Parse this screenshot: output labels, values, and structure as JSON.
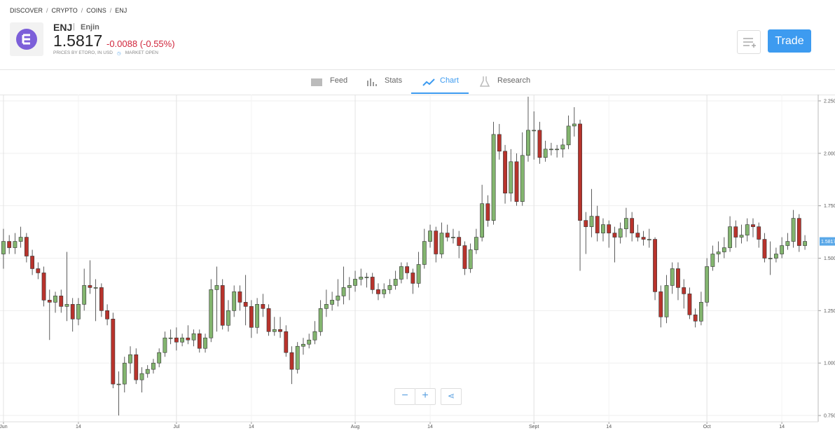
{
  "breadcrumb": [
    "DISCOVER",
    "CRYPTO",
    "COINS",
    "ENJ"
  ],
  "header": {
    "ticker": "ENJ",
    "name": "Enjin",
    "price": "1.5817",
    "change": "-0.0088 (-0.55%)",
    "source": "PRICES BY ETORO, IN USD",
    "status": "MARKET OPEN",
    "trade": "Trade"
  },
  "tabs": [
    "Feed",
    "Stats",
    "Chart",
    "Research"
  ],
  "chart_data": {
    "type": "candlestick",
    "up_color": "#83b56f",
    "down_color": "#b8332c",
    "grid": true,
    "ylim": [
      0.72,
      2.28
    ],
    "yticks": [
      {
        "value": 0.75,
        "label": "0.750"
      },
      {
        "value": 1.0,
        "label": "1.000"
      },
      {
        "value": 1.25,
        "label": "1.250"
      },
      {
        "value": 1.5,
        "label": "1.500"
      },
      {
        "value": 1.75,
        "label": "1.750"
      },
      {
        "value": 2.0,
        "label": "2.000"
      },
      {
        "value": 2.25,
        "label": "2.250"
      }
    ],
    "xlim": [
      -0.6,
      141.3
    ],
    "xticks": [
      {
        "value": 0,
        "label": "Jun"
      },
      {
        "value": 13,
        "label": "14"
      },
      {
        "value": 30,
        "label": "Jul"
      },
      {
        "value": 43,
        "label": "14"
      },
      {
        "value": 61,
        "label": "Aug"
      },
      {
        "value": 74,
        "label": "14"
      },
      {
        "value": 92,
        "label": "Sept"
      },
      {
        "value": 105,
        "label": "14"
      },
      {
        "value": 122,
        "label": "Oct"
      },
      {
        "value": 135,
        "label": "14"
      }
    ],
    "ohlc": [
      [
        1.52,
        1.64,
        1.45,
        1.58
      ],
      [
        1.58,
        1.61,
        1.52,
        1.55
      ],
      [
        1.55,
        1.62,
        1.52,
        1.58
      ],
      [
        1.58,
        1.65,
        1.55,
        1.6
      ],
      [
        1.6,
        1.62,
        1.48,
        1.51
      ],
      [
        1.51,
        1.54,
        1.42,
        1.45
      ],
      [
        1.45,
        1.48,
        1.4,
        1.43
      ],
      [
        1.43,
        1.46,
        1.27,
        1.3
      ],
      [
        1.3,
        1.35,
        1.11,
        1.29
      ],
      [
        1.29,
        1.34,
        1.24,
        1.32
      ],
      [
        1.32,
        1.35,
        1.24,
        1.27
      ],
      [
        1.27,
        1.53,
        1.2,
        1.28
      ],
      [
        1.28,
        1.31,
        1.15,
        1.21
      ],
      [
        1.21,
        1.31,
        1.18,
        1.28
      ],
      [
        1.28,
        1.45,
        1.25,
        1.37
      ],
      [
        1.37,
        1.49,
        1.33,
        1.36
      ],
      [
        1.36,
        1.4,
        1.2,
        1.36
      ],
      [
        1.36,
        1.38,
        1.22,
        1.25
      ],
      [
        1.25,
        1.28,
        1.18,
        1.21
      ],
      [
        1.21,
        1.24,
        0.88,
        0.9
      ],
      [
        0.9,
        0.96,
        0.75,
        0.9
      ],
      [
        0.9,
        1.03,
        0.86,
        1.0
      ],
      [
        1.0,
        1.08,
        0.95,
        1.04
      ],
      [
        1.04,
        1.07,
        0.9,
        0.92
      ],
      [
        0.92,
        0.98,
        0.86,
        0.95
      ],
      [
        0.95,
        0.99,
        0.93,
        0.97
      ],
      [
        0.97,
        1.02,
        0.95,
        1.0
      ],
      [
        1.0,
        1.07,
        0.98,
        1.05
      ],
      [
        1.05,
        1.15,
        1.03,
        1.12
      ],
      [
        1.12,
        1.16,
        1.09,
        1.12
      ],
      [
        1.12,
        1.17,
        1.06,
        1.1
      ],
      [
        1.1,
        1.14,
        1.08,
        1.12
      ],
      [
        1.12,
        1.18,
        1.09,
        1.11
      ],
      [
        1.11,
        1.16,
        1.08,
        1.14
      ],
      [
        1.14,
        1.16,
        1.05,
        1.07
      ],
      [
        1.07,
        1.14,
        1.05,
        1.12
      ],
      [
        1.12,
        1.4,
        1.1,
        1.35
      ],
      [
        1.35,
        1.46,
        1.15,
        1.37
      ],
      [
        1.37,
        1.4,
        1.16,
        1.18
      ],
      [
        1.18,
        1.3,
        1.15,
        1.25
      ],
      [
        1.25,
        1.37,
        1.22,
        1.34
      ],
      [
        1.34,
        1.37,
        1.25,
        1.29
      ],
      [
        1.29,
        1.42,
        1.18,
        1.27
      ],
      [
        1.27,
        1.3,
        1.12,
        1.17
      ],
      [
        1.17,
        1.31,
        1.14,
        1.28
      ],
      [
        1.28,
        1.33,
        1.22,
        1.26
      ],
      [
        1.26,
        1.28,
        1.13,
        1.15
      ],
      [
        1.15,
        1.22,
        1.13,
        1.16
      ],
      [
        1.16,
        1.22,
        1.12,
        1.15
      ],
      [
        1.15,
        1.18,
        1.03,
        1.05
      ],
      [
        1.05,
        1.08,
        0.9,
        0.97
      ],
      [
        0.97,
        1.1,
        0.95,
        1.08
      ],
      [
        1.08,
        1.12,
        1.04,
        1.09
      ],
      [
        1.09,
        1.14,
        1.07,
        1.11
      ],
      [
        1.11,
        1.2,
        1.09,
        1.15
      ],
      [
        1.15,
        1.3,
        1.13,
        1.26
      ],
      [
        1.26,
        1.35,
        1.22,
        1.28
      ],
      [
        1.28,
        1.34,
        1.25,
        1.3
      ],
      [
        1.3,
        1.4,
        1.27,
        1.32
      ],
      [
        1.32,
        1.46,
        1.28,
        1.36
      ],
      [
        1.36,
        1.41,
        1.3,
        1.37
      ],
      [
        1.37,
        1.44,
        1.34,
        1.4
      ],
      [
        1.4,
        1.45,
        1.37,
        1.41
      ],
      [
        1.41,
        1.43,
        1.36,
        1.41
      ],
      [
        1.41,
        1.43,
        1.33,
        1.35
      ],
      [
        1.35,
        1.38,
        1.3,
        1.33
      ],
      [
        1.33,
        1.38,
        1.31,
        1.35
      ],
      [
        1.35,
        1.4,
        1.33,
        1.37
      ],
      [
        1.37,
        1.44,
        1.35,
        1.4
      ],
      [
        1.4,
        1.48,
        1.38,
        1.46
      ],
      [
        1.46,
        1.48,
        1.4,
        1.43
      ],
      [
        1.43,
        1.45,
        1.33,
        1.38
      ],
      [
        1.38,
        1.53,
        1.36,
        1.47
      ],
      [
        1.47,
        1.64,
        1.45,
        1.58
      ],
      [
        1.58,
        1.66,
        1.55,
        1.63
      ],
      [
        1.63,
        1.65,
        1.48,
        1.52
      ],
      [
        1.52,
        1.67,
        1.5,
        1.62
      ],
      [
        1.62,
        1.66,
        1.58,
        1.6
      ],
      [
        1.6,
        1.64,
        1.57,
        1.6
      ],
      [
        1.6,
        1.63,
        1.5,
        1.56
      ],
      [
        1.56,
        1.58,
        1.42,
        1.45
      ],
      [
        1.45,
        1.57,
        1.43,
        1.54
      ],
      [
        1.54,
        1.64,
        1.52,
        1.6
      ],
      [
        1.6,
        1.85,
        1.58,
        1.76
      ],
      [
        1.76,
        1.8,
        1.65,
        1.68
      ],
      [
        1.68,
        2.15,
        1.66,
        2.09
      ],
      [
        2.09,
        2.14,
        1.97,
        2.01
      ],
      [
        2.01,
        2.04,
        1.76,
        1.81
      ],
      [
        1.81,
        2.02,
        1.77,
        1.96
      ],
      [
        1.96,
        2.0,
        1.75,
        1.77
      ],
      [
        1.77,
        2.1,
        1.75,
        1.99
      ],
      [
        1.99,
        2.27,
        1.96,
        2.11
      ],
      [
        2.11,
        2.2,
        1.97,
        2.11
      ],
      [
        2.11,
        2.15,
        1.95,
        1.98
      ],
      [
        1.98,
        2.06,
        1.96,
        2.02
      ],
      [
        2.02,
        2.05,
        1.99,
        2.02
      ],
      [
        2.02,
        2.04,
        1.98,
        2.02
      ],
      [
        2.02,
        2.07,
        1.98,
        2.04
      ],
      [
        2.04,
        2.18,
        2.02,
        2.13
      ],
      [
        2.13,
        2.22,
        2.08,
        2.14
      ],
      [
        2.14,
        2.16,
        1.44,
        1.68
      ],
      [
        1.68,
        1.72,
        1.52,
        1.65
      ],
      [
        1.65,
        1.83,
        1.6,
        1.7
      ],
      [
        1.7,
        1.75,
        1.58,
        1.62
      ],
      [
        1.62,
        1.69,
        1.58,
        1.66
      ],
      [
        1.66,
        1.68,
        1.55,
        1.62
      ],
      [
        1.62,
        1.65,
        1.48,
        1.6
      ],
      [
        1.6,
        1.67,
        1.57,
        1.64
      ],
      [
        1.64,
        1.74,
        1.6,
        1.69
      ],
      [
        1.69,
        1.72,
        1.58,
        1.62
      ],
      [
        1.62,
        1.66,
        1.58,
        1.6
      ],
      [
        1.6,
        1.63,
        1.56,
        1.59
      ],
      [
        1.59,
        1.64,
        1.55,
        1.59
      ],
      [
        1.59,
        1.6,
        1.3,
        1.34
      ],
      [
        1.34,
        1.37,
        1.17,
        1.22
      ],
      [
        1.22,
        1.42,
        1.19,
        1.37
      ],
      [
        1.37,
        1.48,
        1.33,
        1.45
      ],
      [
        1.45,
        1.48,
        1.3,
        1.36
      ],
      [
        1.36,
        1.4,
        1.26,
        1.33
      ],
      [
        1.33,
        1.36,
        1.21,
        1.23
      ],
      [
        1.23,
        1.26,
        1.17,
        1.2
      ],
      [
        1.2,
        1.34,
        1.18,
        1.29
      ],
      [
        1.29,
        1.5,
        1.27,
        1.46
      ],
      [
        1.46,
        1.56,
        1.44,
        1.52
      ],
      [
        1.52,
        1.58,
        1.48,
        1.53
      ],
      [
        1.53,
        1.6,
        1.5,
        1.55
      ],
      [
        1.55,
        1.7,
        1.53,
        1.65
      ],
      [
        1.65,
        1.68,
        1.55,
        1.6
      ],
      [
        1.6,
        1.66,
        1.57,
        1.61
      ],
      [
        1.61,
        1.69,
        1.58,
        1.66
      ],
      [
        1.66,
        1.69,
        1.6,
        1.65
      ],
      [
        1.65,
        1.67,
        1.55,
        1.59
      ],
      [
        1.59,
        1.62,
        1.48,
        1.5
      ],
      [
        1.5,
        1.58,
        1.42,
        1.5
      ],
      [
        1.5,
        1.55,
        1.48,
        1.52
      ],
      [
        1.52,
        1.6,
        1.5,
        1.56
      ],
      [
        1.56,
        1.62,
        1.54,
        1.58
      ],
      [
        1.58,
        1.73,
        1.55,
        1.69
      ],
      [
        1.69,
        1.71,
        1.53,
        1.56
      ],
      [
        1.56,
        1.61,
        1.54,
        1.58
      ]
    ]
  }
}
